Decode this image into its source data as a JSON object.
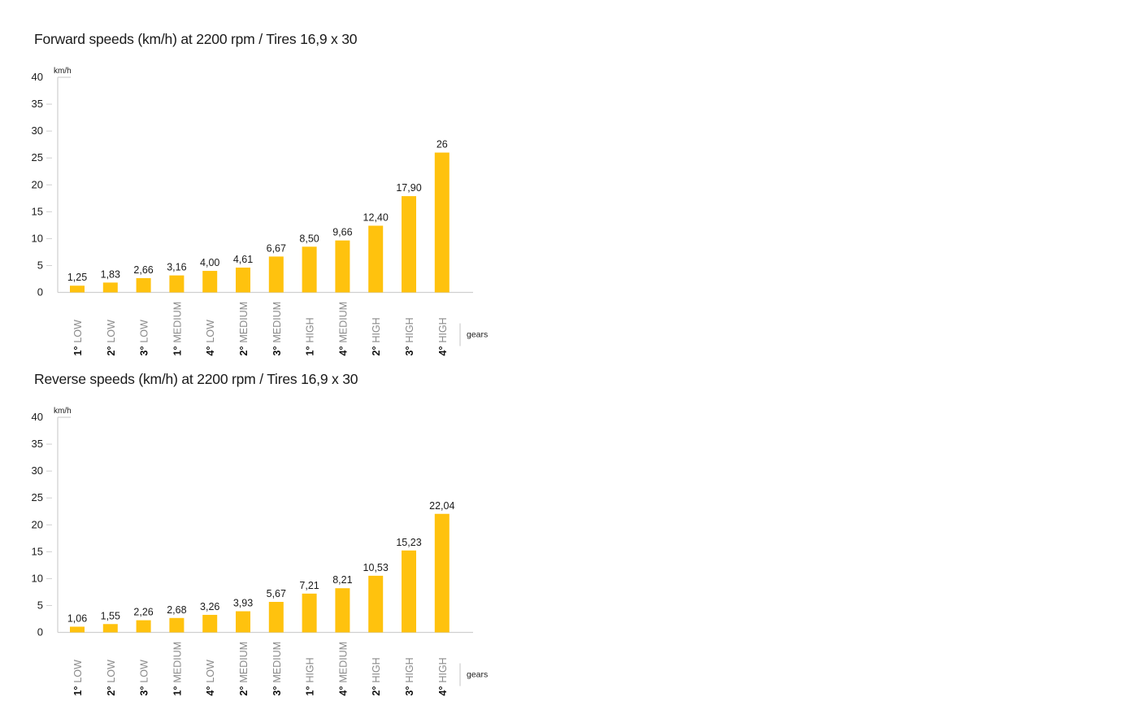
{
  "charts": {
    "forward": {
      "title": "Forward speeds (km/h) at 2200 rpm / Tires 16,9 x 30"
    },
    "reverse": {
      "title": "Reverse speeds (km/h) at 2200 rpm / Tires 16,9 x 30"
    }
  },
  "chart_data": [
    {
      "type": "bar",
      "title": "Forward speeds (km/h) at 2200 rpm / Tires 16,9 x 30",
      "ylabel": "km/h",
      "xlabel": "gears",
      "ylim": [
        0,
        40
      ],
      "yticks": [
        "0",
        "5",
        "10",
        "15",
        "20",
        "25",
        "30",
        "35",
        "40"
      ],
      "grid": false,
      "bar_color": "#FFC20E",
      "categories": [
        {
          "num": "1°",
          "range": "LOW"
        },
        {
          "num": "2°",
          "range": "LOW"
        },
        {
          "num": "3°",
          "range": "LOW"
        },
        {
          "num": "1°",
          "range": "MEDIUM"
        },
        {
          "num": "4°",
          "range": "LOW"
        },
        {
          "num": "2°",
          "range": "MEDIUM"
        },
        {
          "num": "3°",
          "range": "MEDIUM"
        },
        {
          "num": "1°",
          "range": "HIGH"
        },
        {
          "num": "4°",
          "range": "MEDIUM"
        },
        {
          "num": "2°",
          "range": "HIGH"
        },
        {
          "num": "3°",
          "range": "HIGH"
        },
        {
          "num": "4°",
          "range": "HIGH"
        }
      ],
      "values": [
        1.25,
        1.83,
        2.66,
        3.16,
        4.0,
        4.61,
        6.67,
        8.5,
        9.66,
        12.4,
        17.9,
        26
      ],
      "value_labels": [
        "1,25",
        "1,83",
        "2,66",
        "3,16",
        "4,00",
        "4,61",
        "6,67",
        "8,50",
        "9,66",
        "12,40",
        "17,90",
        "26"
      ]
    },
    {
      "type": "bar",
      "title": "Reverse speeds (km/h) at 2200 rpm / Tires 16,9 x 30",
      "ylabel": "km/h",
      "xlabel": "gears",
      "ylim": [
        0,
        40
      ],
      "yticks": [
        "0",
        "5",
        "10",
        "15",
        "20",
        "25",
        "30",
        "35",
        "40"
      ],
      "grid": false,
      "bar_color": "#FFC20E",
      "categories": [
        {
          "num": "1°",
          "range": "LOW"
        },
        {
          "num": "2°",
          "range": "LOW"
        },
        {
          "num": "3°",
          "range": "LOW"
        },
        {
          "num": "1°",
          "range": "MEDIUM"
        },
        {
          "num": "4°",
          "range": "LOW"
        },
        {
          "num": "2°",
          "range": "MEDIUM"
        },
        {
          "num": "3°",
          "range": "MEDIUM"
        },
        {
          "num": "1°",
          "range": "HIGH"
        },
        {
          "num": "4°",
          "range": "MEDIUM"
        },
        {
          "num": "2°",
          "range": "HIGH"
        },
        {
          "num": "3°",
          "range": "HIGH"
        },
        {
          "num": "4°",
          "range": "HIGH"
        }
      ],
      "values": [
        1.06,
        1.55,
        2.26,
        2.68,
        3.26,
        3.93,
        5.67,
        7.21,
        8.21,
        10.53,
        15.23,
        22.04
      ],
      "value_labels": [
        "1,06",
        "1,55",
        "2,26",
        "2,68",
        "3,26",
        "3,93",
        "5,67",
        "7,21",
        "8,21",
        "10,53",
        "15,23",
        "22,04"
      ]
    }
  ]
}
